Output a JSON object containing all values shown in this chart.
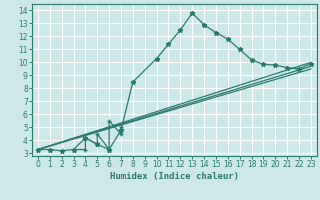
{
  "xlabel": "Humidex (Indice chaleur)",
  "xlim": [
    -0.5,
    23.5
  ],
  "ylim": [
    2.8,
    14.5
  ],
  "xticks": [
    0,
    1,
    2,
    3,
    4,
    5,
    6,
    7,
    8,
    9,
    10,
    11,
    12,
    13,
    14,
    15,
    16,
    17,
    18,
    19,
    20,
    21,
    22,
    23
  ],
  "yticks": [
    3,
    4,
    5,
    6,
    7,
    8,
    9,
    10,
    11,
    12,
    13,
    14
  ],
  "bg_color": "#cce8e8",
  "grid_color": "#ffffff",
  "line_color": "#2a7a6e",
  "line1_x": [
    0,
    1,
    2,
    3,
    4,
    5,
    6,
    7,
    8,
    10,
    11,
    12,
    13,
    14,
    15,
    16,
    17,
    18,
    19,
    20,
    21,
    22,
    23
  ],
  "line1_y": [
    3.3,
    3.3,
    3.2,
    3.3,
    4.2,
    3.7,
    3.3,
    4.8,
    8.5,
    10.3,
    11.4,
    12.5,
    13.8,
    12.9,
    12.3,
    11.8,
    11.0,
    10.2,
    9.85,
    9.8,
    9.6,
    9.5,
    9.9
  ],
  "line2_x": [
    0,
    23
  ],
  "line2_y": [
    3.3,
    10.0
  ],
  "line3_x": [
    0,
    23
  ],
  "line3_y": [
    3.3,
    9.7
  ],
  "line4_x": [
    0,
    23
  ],
  "line4_y": [
    3.3,
    9.5
  ],
  "cluster_x": [
    3,
    4,
    4,
    5,
    5,
    6,
    6,
    7,
    7
  ],
  "cluster_y": [
    3.3,
    3.3,
    4.2,
    3.7,
    4.5,
    3.3,
    5.5,
    4.5,
    5.0
  ]
}
